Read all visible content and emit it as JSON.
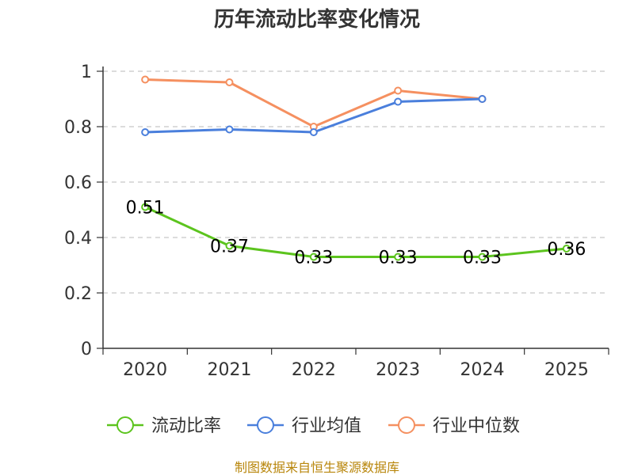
{
  "chart_data": {
    "type": "line",
    "title": "历年流动比率变化情况",
    "categories": [
      "2020",
      "2021",
      "2022",
      "2023",
      "2024",
      "2025"
    ],
    "ylim": [
      0,
      1
    ],
    "yticks": [
      "0",
      "0.2",
      "0.4",
      "0.6",
      "0.8",
      "1"
    ],
    "grid": true,
    "legend_position": "bottom",
    "series": [
      {
        "name": "流动比率",
        "color": "#5cc41e",
        "values": [
          0.51,
          0.37,
          0.33,
          0.33,
          0.33,
          0.36
        ],
        "labels": [
          "0.51",
          "0.37",
          "0.33",
          "0.33",
          "0.33",
          "0.36"
        ],
        "show_labels": true
      },
      {
        "name": "行业均值",
        "color": "#4a7fdc",
        "values": [
          0.78,
          0.79,
          0.78,
          0.89,
          0.9,
          null
        ],
        "show_labels": false
      },
      {
        "name": "行业中位数",
        "color": "#f59060",
        "values": [
          0.97,
          0.96,
          0.8,
          0.93,
          0.9,
          null
        ],
        "show_labels": false
      }
    ],
    "source": "制图数据来自恒生聚源数据库"
  }
}
